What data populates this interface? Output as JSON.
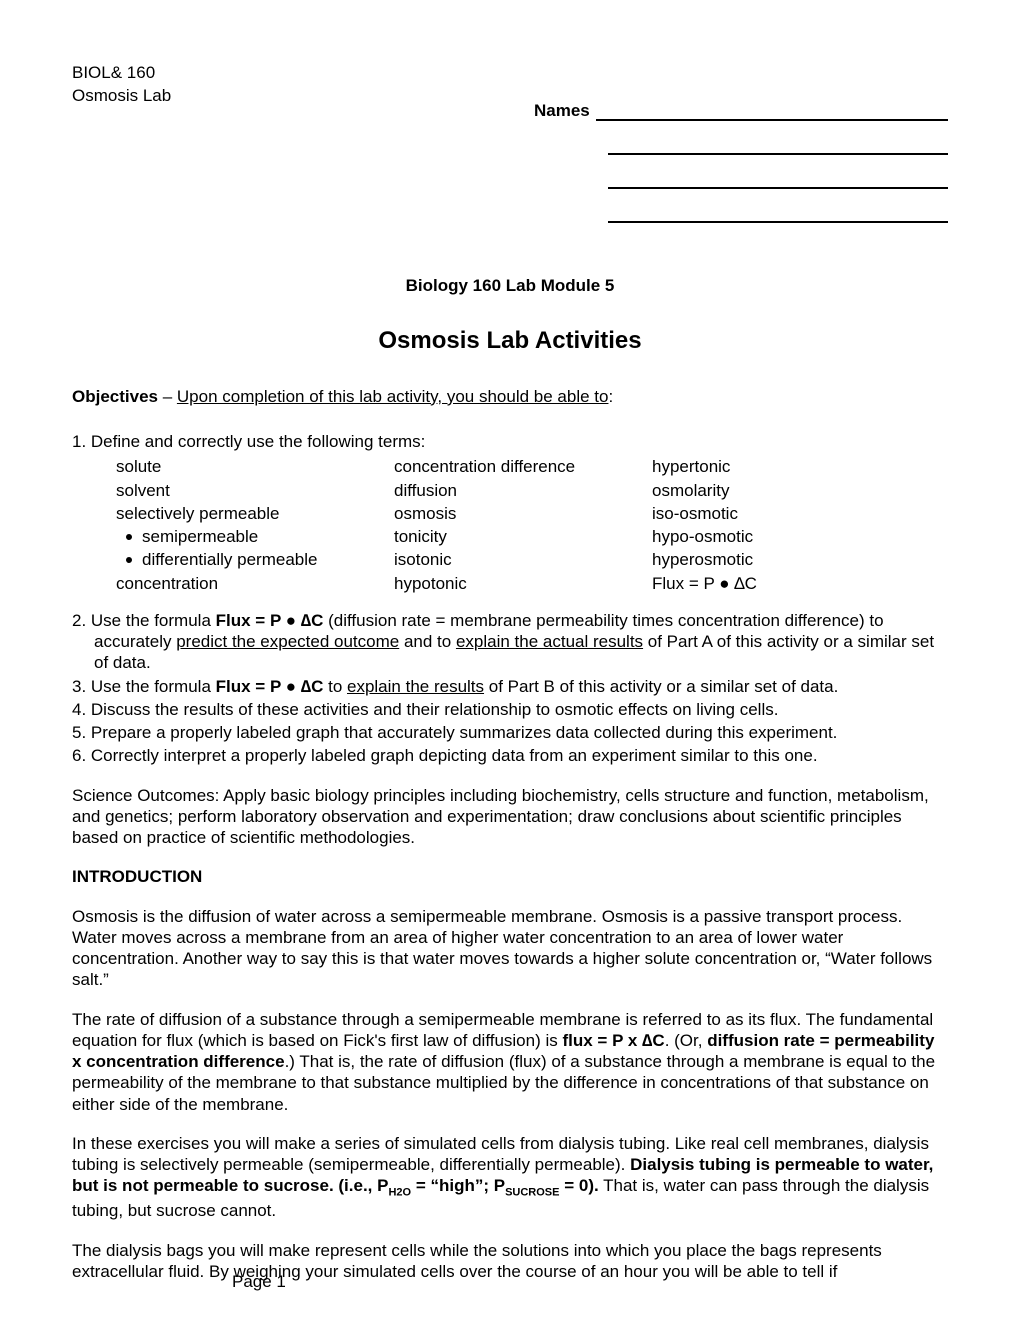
{
  "header": {
    "course": "BIOL& 160",
    "lab": "Osmosis Lab",
    "names_label": "Names"
  },
  "titles": {
    "module": "Biology 160 Lab Module 5",
    "main": "Osmosis Lab Activities"
  },
  "objectives_line": {
    "bold": "Objectives",
    "dash": " – ",
    "underlined": "Upon completion of this lab activity, you should be able to",
    "colon": ":"
  },
  "obj1_lead": "1.  Define and correctly use the following terms:",
  "terms": {
    "col1": [
      "solute",
      "solvent",
      "selectively permeable"
    ],
    "col1_bullets": [
      "semipermeable",
      "differentially permeable"
    ],
    "col1_tail": [
      "concentration"
    ],
    "col2": [
      "concentration difference",
      "diffusion",
      "osmosis",
      "tonicity",
      "isotonic",
      "hypotonic"
    ],
    "col3": [
      "hypertonic",
      "osmolarity",
      "iso-osmotic",
      "hypo-osmotic",
      "hyperosmotic",
      "Flux = P ● ∆C"
    ]
  },
  "obj2": {
    "prefix": "2.  Use the formula ",
    "formula": "Flux = P ● ∆C",
    "mid1": " (diffusion rate = membrane permeability times concentration difference) to accurately ",
    "u1": "predict the expected outcome",
    "mid2": " and to ",
    "u2": "explain the actual results",
    "tail": " of Part A of this activity or a similar set of data."
  },
  "obj3": {
    "prefix": "3.  Use the formula ",
    "formula": "Flux = P ● ∆C",
    "mid1": " to ",
    "u1": "explain the results",
    "tail": " of Part B of this activity or a similar set of data."
  },
  "obj4": "4.  Discuss the results of these activities and their relationship to osmotic effects on living cells.",
  "obj5": "5.  Prepare a properly labeled graph that accurately summarizes data collected during this experiment.",
  "obj6": "6.  Correctly interpret a properly labeled graph depicting data from an experiment similar to this one.",
  "science_outcomes": "Science Outcomes: Apply basic biology principles including biochemistry, cells structure and function, metabolism, and genetics; perform laboratory observation and experimentation; draw conclusions about scientific principles based on practice of scientific methodologies.",
  "intro_head": "INTRODUCTION",
  "intro_p1": "Osmosis is the diffusion of water across a semipermeable membrane.  Osmosis is a passive transport process.  Water moves across a membrane from an area of higher water concentration to an area of lower water concentration.  Another way to say this is that water moves towards a higher solute concentration or, “Water follows salt.”",
  "intro_p2": {
    "a": "The rate of diffusion of a substance through a semipermeable membrane is referred to as its flux.  The fundamental equation for flux (which is based on Fick's first law of diffusion) is ",
    "b": "flux = P x ∆C",
    "c": ".  (Or, ",
    "d": "diffusion rate = permeability x concentration difference",
    "e": ".)  That is, the rate of diffusion (flux) of a substance through a membrane is equal to the permeability of the membrane to that substance multiplied by the difference in concentrations of that substance on either side of the membrane."
  },
  "intro_p3": {
    "a": "In these exercises you will make a series of simulated cells from dialysis tubing.  Like real cell membranes, dialysis tubing is selectively permeable (semipermeable, differentially permeable).  ",
    "b": "Dialysis tubing is permeable to water, but is not permeable to sucrose.  (i.e., P",
    "sub1": "H2O",
    "c": " = “high”;  P",
    "sub2": "SUCROSE",
    "d": " = 0).",
    "e": "  That is, water can pass through the dialysis tubing, but sucrose cannot."
  },
  "intro_p4": "The dialysis bags you will make represent cells while the solutions into which you place the bags represents extracellular fluid.  By weighing your simulated cells over the course of an hour you will be able to tell if",
  "page_label": "Page 1"
}
